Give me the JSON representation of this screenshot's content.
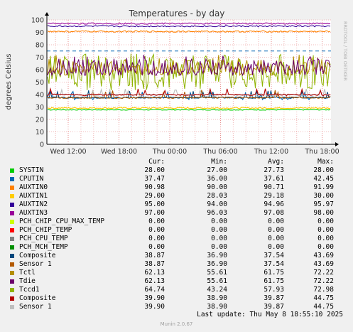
{
  "chart_data": {
    "type": "line",
    "title": "Temperatures - by day",
    "ylabel": "degrees Celsius",
    "side_label": "RRDTOOL / TOBI OETIKER",
    "ylim": [
      0,
      100
    ],
    "y_ticks": [
      0,
      10,
      20,
      30,
      40,
      50,
      60,
      70,
      80,
      90,
      100
    ],
    "x_ticks": [
      "Wed 12:00",
      "Wed 18:00",
      "Thu 00:00",
      "Thu 06:00",
      "Thu 12:00",
      "Thu 18:00"
    ],
    "grid": true,
    "legend_columns": [
      "Cur:",
      "Min:",
      "Avg:",
      "Max:"
    ],
    "series": [
      {
        "name": "SYSTIN",
        "color": "#00cc00",
        "cur": "28.00",
        "min": "27.00",
        "avg": "27.73",
        "max": "28.00"
      },
      {
        "name": "CPUTIN",
        "color": "#0066b3",
        "cur": "37.47",
        "min": "36.00",
        "avg": "37.61",
        "max": "42.45"
      },
      {
        "name": "AUXTIN0",
        "color": "#ff8000",
        "cur": "90.98",
        "min": "90.00",
        "avg": "90.71",
        "max": "91.99"
      },
      {
        "name": "AUXTIN1",
        "color": "#ffcc00",
        "cur": "29.00",
        "min": "28.03",
        "avg": "29.18",
        "max": "30.00"
      },
      {
        "name": "AUXTIN2",
        "color": "#330099",
        "cur": "95.00",
        "min": "94.00",
        "avg": "94.96",
        "max": "95.97"
      },
      {
        "name": "AUXTIN3",
        "color": "#990099",
        "cur": "97.00",
        "min": "96.03",
        "avg": "97.08",
        "max": "98.00"
      },
      {
        "name": "PCH_CHIP_CPU_MAX_TEMP",
        "color": "#ccff00",
        "cur": "0.00",
        "min": "0.00",
        "avg": "0.00",
        "max": "0.00"
      },
      {
        "name": "PCH_CHIP_TEMP",
        "color": "#ff0000",
        "cur": "0.00",
        "min": "0.00",
        "avg": "0.00",
        "max": "0.00"
      },
      {
        "name": "PCH_CPU_TEMP",
        "color": "#808080",
        "cur": "0.00",
        "min": "0.00",
        "avg": "0.00",
        "max": "0.00"
      },
      {
        "name": "PCH_MCH_TEMP",
        "color": "#008f00",
        "cur": "0.00",
        "min": "0.00",
        "avg": "0.00",
        "max": "0.00"
      },
      {
        "name": "Composite",
        "color": "#00487d",
        "cur": "38.87",
        "min": "36.90",
        "avg": "37.54",
        "max": "43.69"
      },
      {
        "name": "Sensor 1",
        "color": "#b35a00",
        "cur": "38.87",
        "min": "36.90",
        "avg": "37.54",
        "max": "43.69"
      },
      {
        "name": "Tctl",
        "color": "#b38f00",
        "cur": "62.13",
        "min": "55.61",
        "avg": "61.75",
        "max": "72.22"
      },
      {
        "name": "Tdie",
        "color": "#6b006b",
        "cur": "62.13",
        "min": "55.61",
        "avg": "61.75",
        "max": "72.22"
      },
      {
        "name": "Tccd1",
        "color": "#8fb300",
        "cur": "64.74",
        "min": "43.24",
        "avg": "57.93",
        "max": "72.98"
      },
      {
        "name": "Composite",
        "color": "#b30000",
        "cur": "39.90",
        "min": "38.90",
        "avg": "39.87",
        "max": "44.75"
      },
      {
        "name": "Sensor 1",
        "color": "#bebebe",
        "cur": "39.90",
        "min": "38.90",
        "avg": "39.87",
        "max": "44.75"
      }
    ],
    "reference_line": {
      "value": 75,
      "color": "#0066b3",
      "style": "dashed"
    }
  },
  "footer": {
    "last_update": "Last update: Thu May  8 18:55:10 2025",
    "version": "Munin 2.0.67"
  }
}
